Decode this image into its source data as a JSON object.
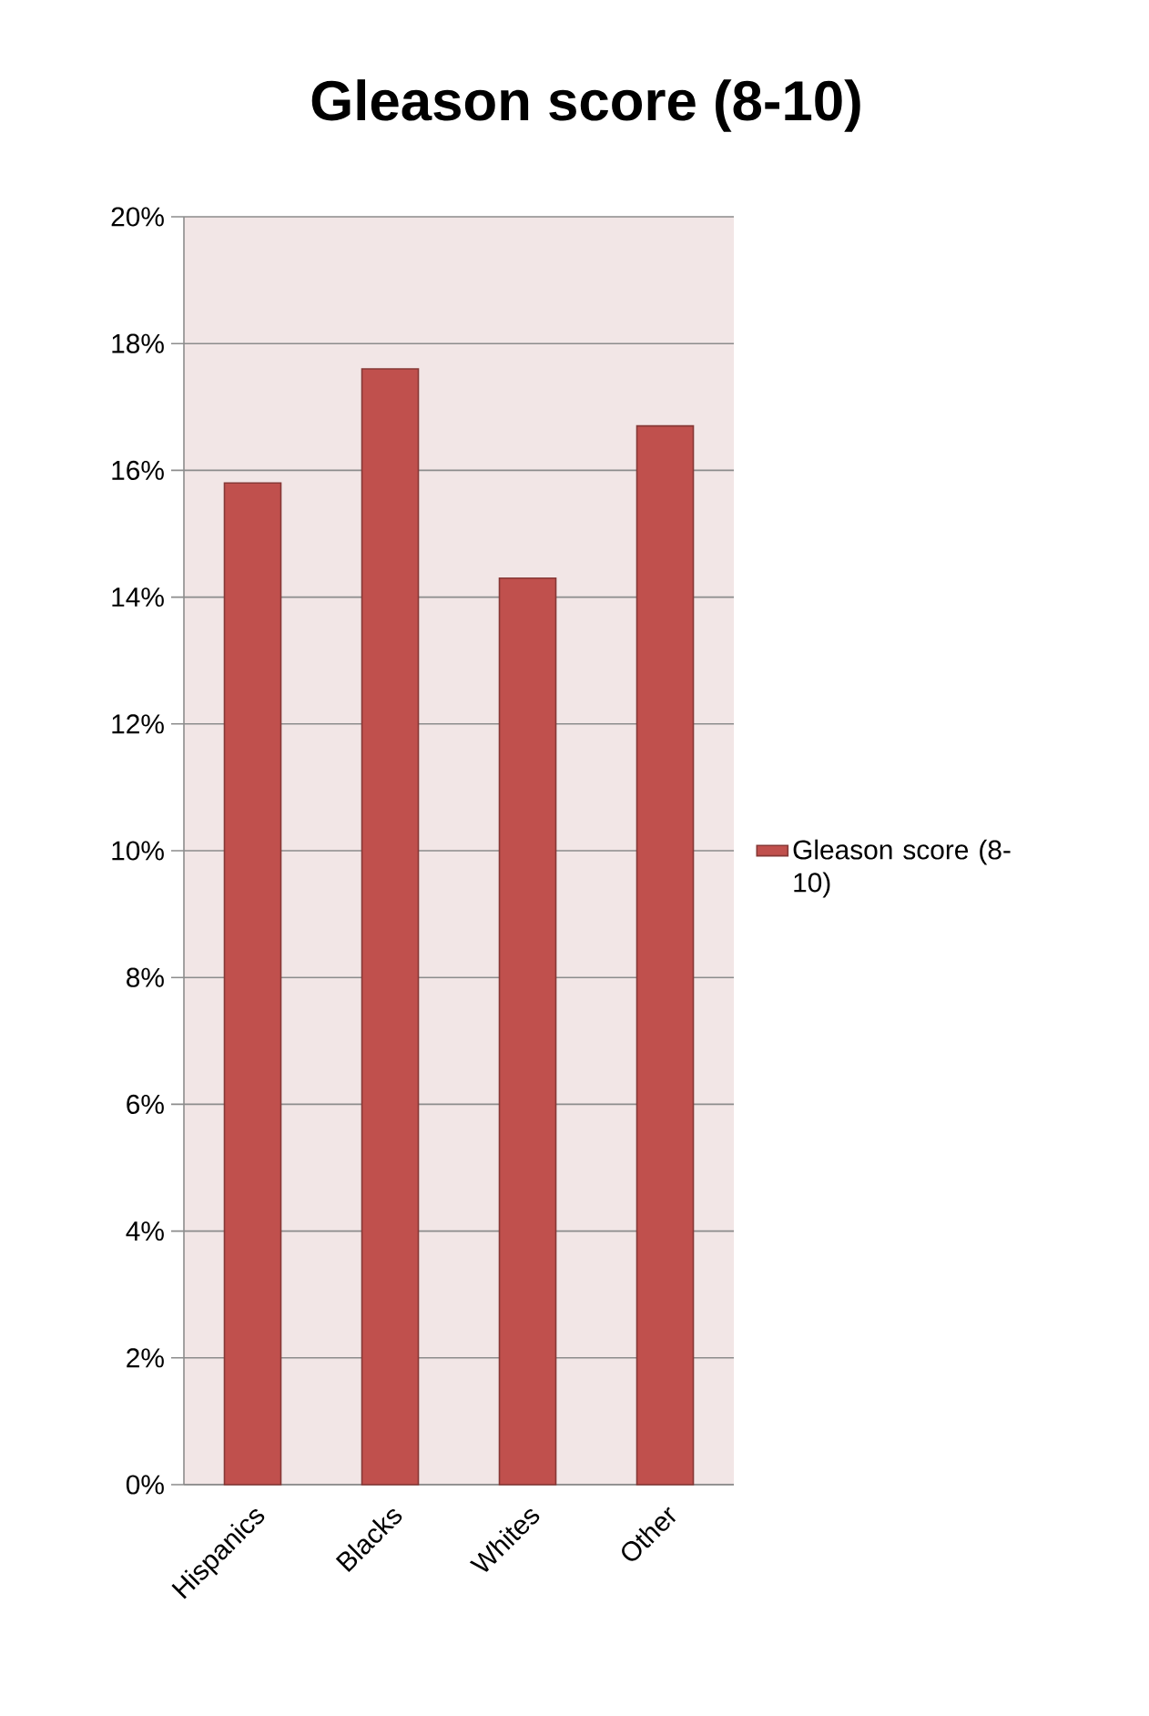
{
  "chart_data": {
    "type": "bar",
    "title": "Gleason score (8-10)",
    "categories": [
      "Hispanics",
      "Blacks",
      "Whites",
      "Other"
    ],
    "series": [
      {
        "name": "Gleason score (8-10)",
        "color": "#c0504d",
        "values": [
          15.8,
          17.6,
          14.3,
          16.7
        ]
      }
    ],
    "ylim": [
      0,
      20
    ],
    "yticks": [
      {
        "value": 0,
        "label": "0%"
      },
      {
        "value": 2,
        "label": "2%"
      },
      {
        "value": 4,
        "label": "4%"
      },
      {
        "value": 6,
        "label": "6%"
      },
      {
        "value": 8,
        "label": "8%"
      },
      {
        "value": 10,
        "label": "10%"
      },
      {
        "value": 12,
        "label": "12%"
      },
      {
        "value": 14,
        "label": "14%"
      },
      {
        "value": 16,
        "label": "16%"
      },
      {
        "value": 18,
        "label": "18%"
      },
      {
        "value": 20,
        "label": "20%"
      }
    ],
    "grid": "y",
    "legend": "right"
  }
}
